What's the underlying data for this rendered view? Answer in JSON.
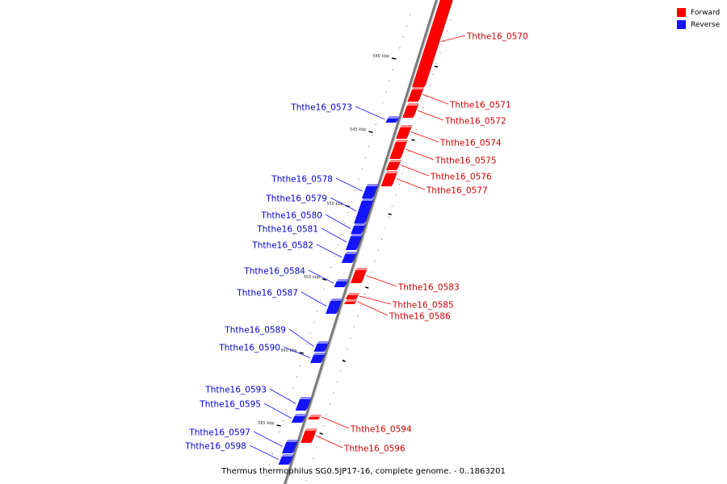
{
  "legend": {
    "forward_label": "Forward",
    "reverse_label": "Reverse",
    "forward_color": "#ff0000",
    "reverse_color": "#1414ff"
  },
  "caption": "Thermus thermophilus SG0.5JP17-16, complete genome. - 0..1863201",
  "ticks": [
    "540 kbp",
    "545 kbp",
    "550 kbp",
    "555 kbp",
    "560 kbp",
    "565 kbp"
  ],
  "genes": [
    {
      "name": "Ththe16_0570",
      "strand": "forward"
    },
    {
      "name": "Ththe16_0571",
      "strand": "forward"
    },
    {
      "name": "Ththe16_0572",
      "strand": "forward"
    },
    {
      "name": "Ththe16_0573",
      "strand": "reverse"
    },
    {
      "name": "Ththe16_0574",
      "strand": "forward"
    },
    {
      "name": "Ththe16_0575",
      "strand": "forward"
    },
    {
      "name": "Ththe16_0576",
      "strand": "forward"
    },
    {
      "name": "Ththe16_0577",
      "strand": "forward"
    },
    {
      "name": "Ththe16_0578",
      "strand": "reverse"
    },
    {
      "name": "Ththe16_0579",
      "strand": "reverse"
    },
    {
      "name": "Ththe16_0580",
      "strand": "reverse"
    },
    {
      "name": "Ththe16_0581",
      "strand": "reverse"
    },
    {
      "name": "Ththe16_0582",
      "strand": "reverse"
    },
    {
      "name": "Ththe16_0583",
      "strand": "forward"
    },
    {
      "name": "Ththe16_0584",
      "strand": "reverse"
    },
    {
      "name": "Ththe16_0585",
      "strand": "forward"
    },
    {
      "name": "Ththe16_0586",
      "strand": "forward"
    },
    {
      "name": "Ththe16_0587",
      "strand": "reverse"
    },
    {
      "name": "Ththe16_0589",
      "strand": "reverse"
    },
    {
      "name": "Ththe16_0590",
      "strand": "reverse"
    },
    {
      "name": "Ththe16_0593",
      "strand": "reverse"
    },
    {
      "name": "Ththe16_0594",
      "strand": "forward"
    },
    {
      "name": "Ththe16_0595",
      "strand": "reverse"
    },
    {
      "name": "Ththe16_0596",
      "strand": "forward"
    },
    {
      "name": "Ththe16_0597",
      "strand": "reverse"
    },
    {
      "name": "Ththe16_0598",
      "strand": "reverse"
    }
  ]
}
